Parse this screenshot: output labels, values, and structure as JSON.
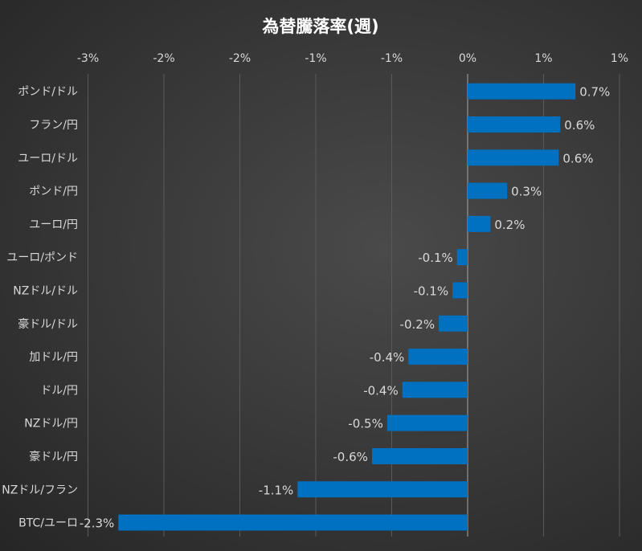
{
  "chart_data": {
    "type": "bar",
    "orientation": "horizontal",
    "title": "為替騰落率(週)",
    "xlabel": "",
    "ylabel": "",
    "xlim": [
      -2.5,
      1.0
    ],
    "x_ticks": [
      -2.5,
      -2.0,
      -1.5,
      -1.0,
      -0.5,
      0,
      0.5,
      1.0
    ],
    "x_tick_labels": [
      "-3%",
      "-2%",
      "-2%",
      "-1%",
      "-1%",
      "0%",
      "1%",
      "1%"
    ],
    "grid": true,
    "legend": "none",
    "bar_color": "#0070C0",
    "categories": [
      "ポンド/ドル",
      "フラン/円",
      "ユーロ/ドル",
      "ポンド/円",
      "ユーロ/円",
      "ユーロ/ポンド",
      "NZドル/ドル",
      "豪ドル/ドル",
      "加ドル/円",
      "ドル/円",
      "NZドル/円",
      "豪ドル/円",
      "NZドル/フラン",
      "BTC/ユーロ"
    ],
    "values": [
      0.71,
      0.61,
      0.6,
      0.26,
      0.15,
      -0.07,
      -0.1,
      -0.19,
      -0.39,
      -0.43,
      -0.53,
      -0.63,
      -1.12,
      -2.3
    ],
    "data_labels": [
      "0.7%",
      "0.6%",
      "0.6%",
      "0.3%",
      "0.2%",
      "-0.1%",
      "-0.1%",
      "-0.2%",
      "-0.4%",
      "-0.4%",
      "-0.5%",
      "-0.6%",
      "-1.1%",
      "-2.3%"
    ]
  }
}
